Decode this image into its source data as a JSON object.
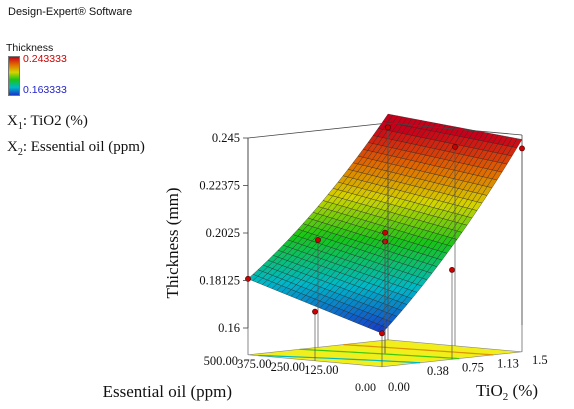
{
  "header": {
    "software": "Design-Expert® Software"
  },
  "legend": {
    "title": "Thickness",
    "max_label": "0.243333",
    "min_label": "0.163333"
  },
  "factors": {
    "x1": {
      "prefix": "X",
      "sub": "1",
      "text": ": TiO2 (%)"
    },
    "x2": {
      "prefix": "X",
      "sub": "2",
      "text": ": Essential oil (ppm)"
    }
  },
  "colors": {
    "floor": "#f2ee1c",
    "high": "#c8001a",
    "low": "#1838c8",
    "point": "#cc0000"
  },
  "chart_data": {
    "type": "surface3d",
    "zlabel": "Thickness (mm)",
    "xlabel_prefix": "TiO",
    "xlabel_sub": "2",
    "xlabel_suffix": " (%)",
    "ylabel": "Essential oil (ppm)",
    "x_ticks": [
      "0.00",
      "0.38",
      "0.75",
      "1.13",
      "1.5"
    ],
    "y_ticks": [
      "0.00",
      "125.00",
      "250.00",
      "375.00",
      "500.00"
    ],
    "z_ticks": [
      "0.16",
      "0.18125",
      "0.2025",
      "0.22375",
      "0.245"
    ],
    "xlim": [
      0,
      1.5
    ],
    "ylim": [
      0,
      500
    ],
    "zlim": [
      0.16,
      0.245
    ],
    "corner_values": [
      {
        "x": 0,
        "y": 0,
        "z": 0.163
      },
      {
        "x": 1.5,
        "y": 0,
        "z": 0.237
      },
      {
        "x": 1.5,
        "y": 500,
        "z": 0.243
      },
      {
        "x": 0,
        "y": 500,
        "z": 0.182
      }
    ],
    "design_points": [
      {
        "x": 0,
        "y": 0,
        "z": 0.163
      },
      {
        "x": 0,
        "y": 500,
        "z": 0.182
      },
      {
        "x": 1.5,
        "y": 500,
        "z": 0.243
      },
      {
        "x": 1.5,
        "y": 0,
        "z": 0.239
      },
      {
        "x": 0.75,
        "y": 250,
        "z": 0.198
      },
      {
        "x": 0.75,
        "y": 250,
        "z": 0.202
      },
      {
        "x": 0.75,
        "y": 0,
        "z": 0.188
      },
      {
        "x": 0.75,
        "y": 500,
        "z": 0.196
      },
      {
        "x": 0,
        "y": 250,
        "z": 0.17
      },
      {
        "x": 1.5,
        "y": 250,
        "z": 0.237
      }
    ],
    "contour_levels": [
      0.18125,
      0.2025,
      0.22375
    ]
  }
}
